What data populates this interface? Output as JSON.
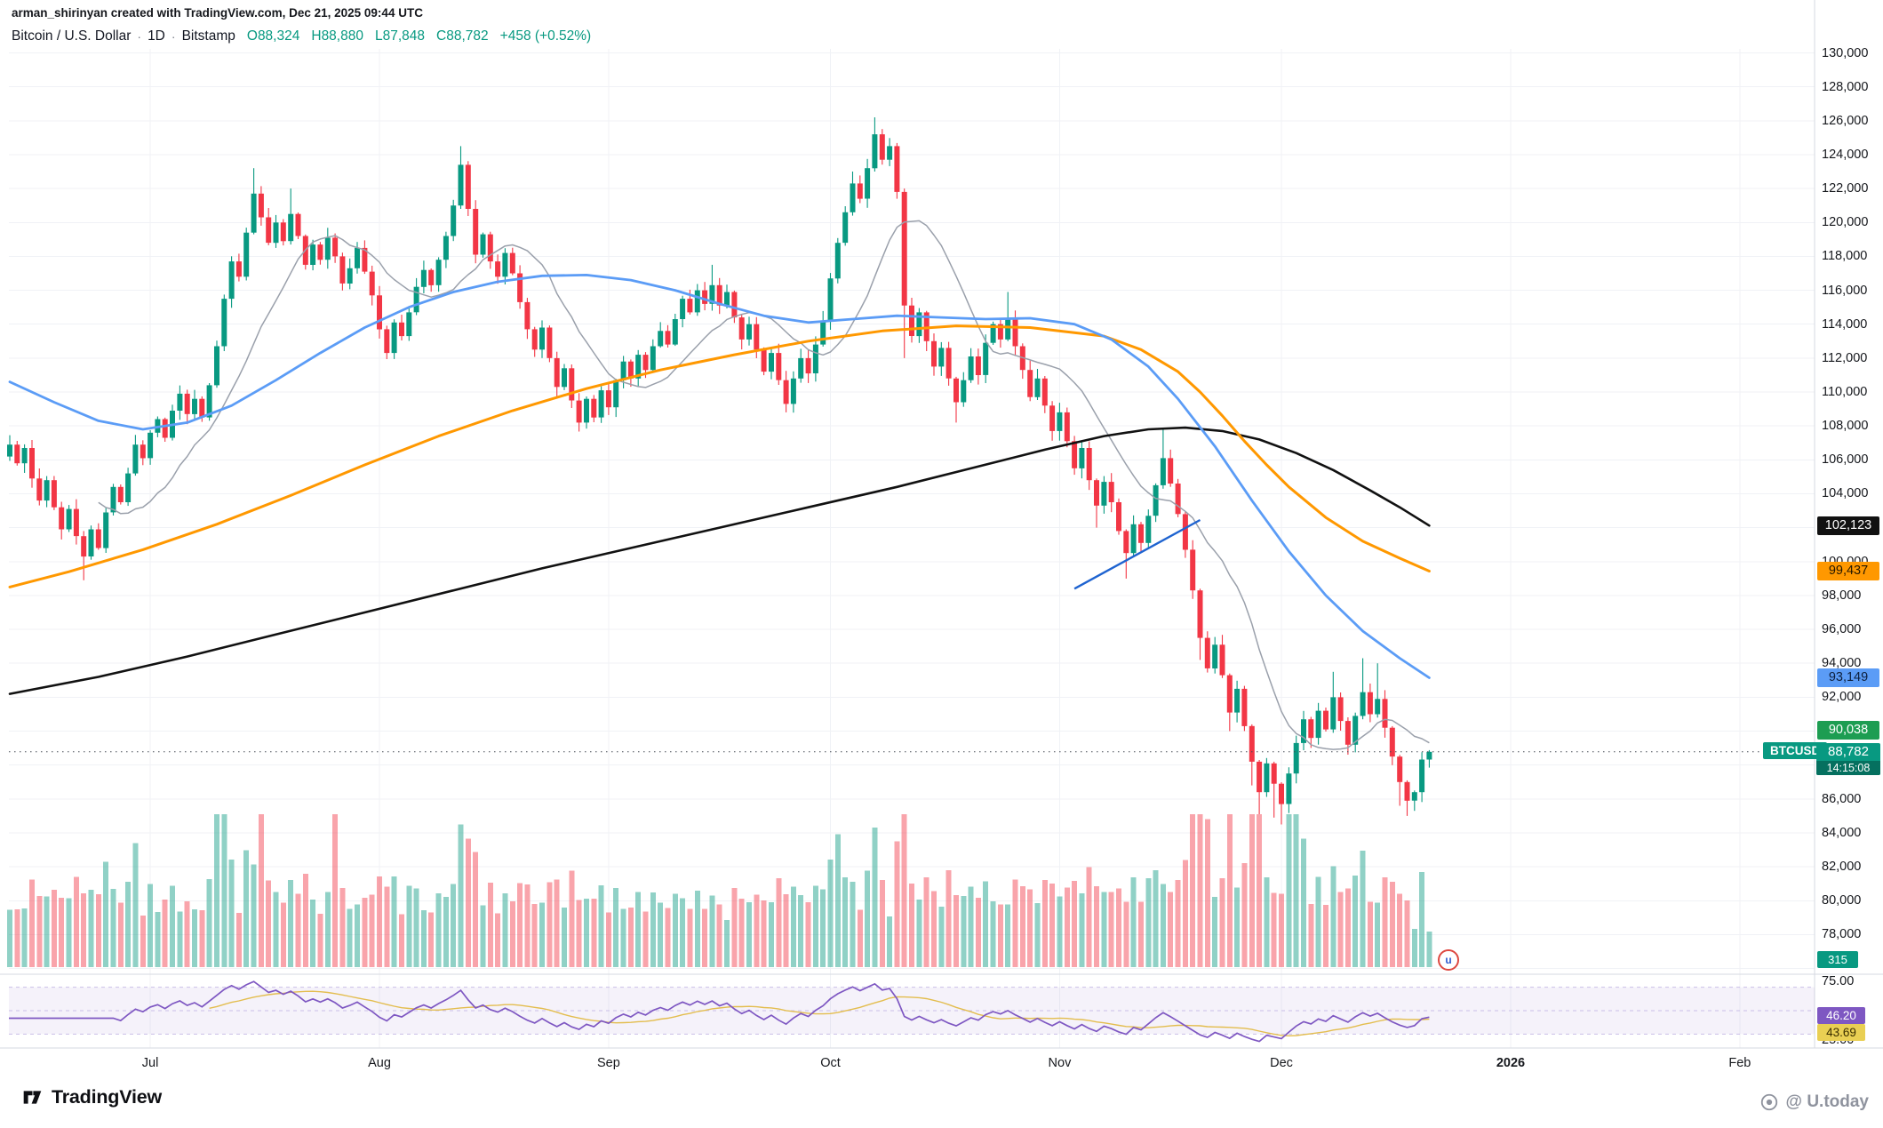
{
  "meta": {
    "attribution": "arman_shirinyan created with TradingView.com, Dec 21, 2025 09:44 UTC"
  },
  "header": {
    "symbol": "Bitcoin / U.S. Dollar",
    "sep": "·",
    "interval": "1D",
    "exchange": "Bitstamp",
    "o_label": "O",
    "open": "88,324",
    "h_label": "H",
    "high": "88,880",
    "l_label": "L",
    "low": "87,848",
    "c_label": "C",
    "close": "88,782",
    "change": "+458 (+0.52%)"
  },
  "axis": {
    "price_ticks": [
      {
        "label": "130,000",
        "price": 130000
      },
      {
        "label": "128,000",
        "price": 128000
      },
      {
        "label": "126,000",
        "price": 126000
      },
      {
        "label": "124,000",
        "price": 124000
      },
      {
        "label": "122,000",
        "price": 122000
      },
      {
        "label": "120,000",
        "price": 120000
      },
      {
        "label": "118,000",
        "price": 118000
      },
      {
        "label": "116,000",
        "price": 116000
      },
      {
        "label": "114,000",
        "price": 114000
      },
      {
        "label": "112,000",
        "price": 112000
      },
      {
        "label": "110,000",
        "price": 110000
      },
      {
        "label": "108,000",
        "price": 108000
      },
      {
        "label": "106,000",
        "price": 106000
      },
      {
        "label": "104,000",
        "price": 104000
      },
      {
        "label": "100,000",
        "price": 100000
      },
      {
        "label": "98,000",
        "price": 98000
      },
      {
        "label": "96,000",
        "price": 96000
      },
      {
        "label": "94,000",
        "price": 94000
      },
      {
        "label": "92,000",
        "price": 92000
      },
      {
        "label": "86,000",
        "price": 86000
      },
      {
        "label": "84,000",
        "price": 84000
      },
      {
        "label": "82,000",
        "price": 82000
      },
      {
        "label": "80,000",
        "price": 80000
      },
      {
        "label": "78,000",
        "price": 78000
      }
    ],
    "time_ticks": [
      {
        "label": "Jul",
        "day": 19
      },
      {
        "label": "Aug",
        "day": 50
      },
      {
        "label": "Sep",
        "day": 81
      },
      {
        "label": "Oct",
        "day": 111
      },
      {
        "label": "Nov",
        "day": 142
      },
      {
        "label": "Dec",
        "day": 172
      },
      {
        "label": "2026",
        "day": 203,
        "bold": true
      },
      {
        "label": "Feb",
        "day": 234
      }
    ],
    "rsi_ticks": [
      {
        "label": "75.00",
        "value": 75
      },
      {
        "label": "25.00",
        "value": 25
      }
    ]
  },
  "badges": {
    "ma_labels": [
      {
        "text": "102,123",
        "price": 102123,
        "bg": "#111111",
        "fg": "#ffffff"
      },
      {
        "text": "99,437",
        "price": 99437,
        "bg": "#ff9800",
        "fg": "#241700"
      },
      {
        "text": "93,149",
        "price": 93149,
        "bg": "#5b9cf6",
        "fg": "#0d1f3c"
      },
      {
        "text": "90,038",
        "price": 90038,
        "bg": "#1d9d52",
        "fg": "#ffffff"
      }
    ],
    "last_price": {
      "symbol": "BTCUSD",
      "text": "88,782",
      "price": 88782,
      "countdown": "14:15:08",
      "bg": "#089981",
      "bg_dark": "#05705f",
      "fg": "#ffffff"
    },
    "volume": {
      "text": "315",
      "bg": "#089981",
      "fg": "#ffffff"
    },
    "rsi": [
      {
        "text": "46.20",
        "value": 46.2,
        "bg": "#7e57c2",
        "fg": "#ffffff"
      },
      {
        "text": "43.69",
        "value": 43.69,
        "bg": "#e9cf53",
        "fg": "#3a2f00"
      }
    ]
  },
  "footer": {
    "logo_text": "TradingView",
    "watermark": "@ U.today",
    "stamp_letter": "u"
  },
  "chart_data": {
    "type": "candlestick",
    "title": "Bitcoin / U.S. Dollar, 1D, Bitstamp",
    "symbol": "BTCUSD",
    "exchange": "Bitstamp",
    "interval": "1D",
    "last": {
      "open": 88324,
      "high": 88880,
      "low": 87848,
      "close": 88782,
      "change": 458,
      "change_pct": 0.52,
      "countdown": "14:15:08",
      "volume": 315
    },
    "y_axis": {
      "min": 75000,
      "max": 131000,
      "tick_step": 2000
    },
    "x_axis_months": [
      "Jul",
      "Aug",
      "Sep",
      "Oct",
      "Nov",
      "Dec",
      "2026",
      "Feb"
    ],
    "first_open": 106200,
    "closes": [
      106900,
      105800,
      106700,
      104900,
      103600,
      104800,
      103200,
      101900,
      103100,
      101500,
      100300,
      101900,
      100800,
      102900,
      104400,
      103500,
      105200,
      106900,
      106100,
      107600,
      108400,
      107300,
      108900,
      109900,
      108700,
      109600,
      108500,
      110400,
      112700,
      115500,
      117700,
      116800,
      119400,
      121700,
      120300,
      118800,
      120000,
      118900,
      120500,
      119200,
      117500,
      118700,
      117800,
      119100,
      118000,
      116400,
      117300,
      118500,
      117100,
      115700,
      113700,
      112300,
      114100,
      113300,
      114700,
      116200,
      117200,
      116300,
      117800,
      119200,
      121000,
      123400,
      120800,
      118100,
      119300,
      117700,
      116800,
      118200,
      117000,
      115300,
      113700,
      112500,
      113800,
      112000,
      110300,
      111400,
      109500,
      108200,
      109600,
      108500,
      110100,
      109100,
      110700,
      111800,
      110800,
      112200,
      111300,
      112700,
      113600,
      112800,
      114300,
      115500,
      114700,
      116000,
      115200,
      116300,
      115100,
      115900,
      114400,
      113100,
      114000,
      112500,
      111200,
      112300,
      110700,
      109300,
      110800,
      112000,
      111100,
      112800,
      114200,
      116700,
      118800,
      120600,
      122300,
      121400,
      123200,
      125200,
      123700,
      124500,
      121800,
      115100,
      113300,
      114700,
      113000,
      111500,
      112600,
      110800,
      109400,
      110700,
      112100,
      111000,
      112900,
      114000,
      113100,
      114300,
      112700,
      111300,
      109700,
      110800,
      109200,
      107700,
      108800,
      107100,
      105500,
      106700,
      104800,
      103300,
      104700,
      103500,
      101800,
      100500,
      102200,
      101100,
      102700,
      104500,
      106100,
      104600,
      102800,
      100700,
      98300,
      95500,
      93700,
      95100,
      93300,
      91100,
      92500,
      90300,
      88200,
      86400,
      88100,
      86900,
      85700,
      87500,
      89300,
      90700,
      89600,
      91200,
      90100,
      92000,
      90600,
      89200,
      90900,
      92300,
      91000,
      91900,
      90200,
      88500,
      87000,
      85900,
      86400,
      88324,
      88782
    ],
    "wick_overrides": {
      "10": [
        101800,
        98900
      ],
      "33": [
        123200,
        119300
      ],
      "38": [
        122000,
        118700
      ],
      "61": [
        124500,
        120800
      ],
      "95": [
        117500,
        114800
      ],
      "114": [
        123000,
        120400
      ],
      "117": [
        126200,
        123000
      ],
      "121": [
        122000,
        112000
      ],
      "128": [
        110900,
        108200
      ],
      "135": [
        115900,
        113000
      ],
      "147": [
        104900,
        102000
      ],
      "151": [
        101900,
        99000
      ],
      "156": [
        107800,
        104300
      ],
      "161": [
        98400,
        94200
      ],
      "165": [
        93400,
        90000
      ],
      "168": [
        90400,
        86800
      ],
      "169": [
        88300,
        85100
      ],
      "171": [
        88200,
        84900
      ],
      "172": [
        86990,
        84500
      ],
      "179": [
        93500,
        89900
      ],
      "183": [
        94300,
        90700
      ],
      "185": [
        94000,
        90800
      ],
      "188": [
        88600,
        85600
      ],
      "189": [
        87100,
        85000
      ],
      "190": [
        86500,
        85300
      ],
      "192": [
        88880,
        87848
      ]
    },
    "volume_spikes": {
      "17": 40,
      "28": 55,
      "29": 60,
      "34": 120,
      "44": 110,
      "61": 30,
      "62": 20,
      "112": 45,
      "117": 50,
      "121": 90,
      "160": 85,
      "161": 100,
      "162": 65,
      "165": 55,
      "168": 80,
      "169": 88,
      "173": 75,
      "174": 90,
      "175": 65,
      "183": 55
    },
    "overlays": {
      "sma50": {
        "color": "#5b9cf6",
        "points": [
          [
            0,
            110600
          ],
          [
            6,
            109400
          ],
          [
            12,
            108300
          ],
          [
            18,
            107800
          ],
          [
            24,
            108200
          ],
          [
            30,
            109200
          ],
          [
            36,
            110700
          ],
          [
            42,
            112300
          ],
          [
            48,
            113800
          ],
          [
            54,
            115000
          ],
          [
            60,
            115900
          ],
          [
            66,
            116500
          ],
          [
            72,
            116850
          ],
          [
            78,
            116900
          ],
          [
            84,
            116600
          ],
          [
            90,
            116000
          ],
          [
            96,
            115200
          ],
          [
            102,
            114500
          ],
          [
            108,
            114100
          ],
          [
            114,
            114300
          ],
          [
            120,
            114500
          ],
          [
            126,
            114400
          ],
          [
            132,
            114300
          ],
          [
            138,
            114350
          ],
          [
            144,
            114000
          ],
          [
            149,
            113100
          ],
          [
            154,
            111500
          ],
          [
            158,
            109600
          ],
          [
            163,
            106800
          ],
          [
            168,
            103600
          ],
          [
            173,
            100600
          ],
          [
            178,
            98000
          ],
          [
            183,
            95900
          ],
          [
            188,
            94300
          ],
          [
            192,
            93149
          ]
        ]
      },
      "sma100": {
        "color": "#ff9800",
        "points": [
          [
            0,
            98500
          ],
          [
            8,
            99400
          ],
          [
            18,
            100700
          ],
          [
            28,
            102200
          ],
          [
            38,
            103900
          ],
          [
            48,
            105700
          ],
          [
            58,
            107400
          ],
          [
            68,
            108900
          ],
          [
            78,
            110200
          ],
          [
            88,
            111300
          ],
          [
            98,
            112200
          ],
          [
            108,
            113000
          ],
          [
            118,
            113600
          ],
          [
            128,
            113900
          ],
          [
            138,
            113800
          ],
          [
            148,
            113300
          ],
          [
            153,
            112500
          ],
          [
            158,
            111200
          ],
          [
            161,
            110000
          ],
          [
            164,
            108600
          ],
          [
            167,
            107100
          ],
          [
            170,
            105700
          ],
          [
            173,
            104400
          ],
          [
            178,
            102600
          ],
          [
            183,
            101200
          ],
          [
            188,
            100200
          ],
          [
            192,
            99437
          ]
        ]
      },
      "sma200": {
        "color": "#111111",
        "points": [
          [
            0,
            92200
          ],
          [
            12,
            93200
          ],
          [
            24,
            94400
          ],
          [
            36,
            95700
          ],
          [
            48,
            97000
          ],
          [
            60,
            98300
          ],
          [
            72,
            99600
          ],
          [
            84,
            100800
          ],
          [
            96,
            102000
          ],
          [
            108,
            103200
          ],
          [
            120,
            104400
          ],
          [
            130,
            105500
          ],
          [
            140,
            106600
          ],
          [
            148,
            107400
          ],
          [
            154,
            107800
          ],
          [
            159,
            107900
          ],
          [
            164,
            107700
          ],
          [
            169,
            107200
          ],
          [
            174,
            106400
          ],
          [
            179,
            105400
          ],
          [
            184,
            104200
          ],
          [
            188,
            103200
          ],
          [
            192,
            102123
          ]
        ]
      },
      "fast_ma": {
        "color": "#9aa0ab",
        "window": 13
      }
    },
    "trendline": {
      "from_day": 144,
      "from_price": 98400,
      "to_day": 161,
      "to_price": 102450,
      "color": "#1e63d0"
    },
    "rsi": {
      "period": 14,
      "ma_window": 14,
      "last": 46.2,
      "ma_last": 43.69,
      "bands": [
        70,
        30
      ],
      "colors": {
        "line": "#7e57c2",
        "ma": "#e3bd4e",
        "band_fill": "rgba(126,87,194,0.08)",
        "dash": "#c9bfe8"
      }
    },
    "colors": {
      "up": "#089981",
      "down": "#f23645",
      "vol_up": "rgba(8,153,129,0.45)",
      "vol_down": "rgba(242,54,69,0.45)",
      "dotted_price_line": "#454a54",
      "grid": "#f0f2f6",
      "separator": "#d6d9e0"
    }
  }
}
